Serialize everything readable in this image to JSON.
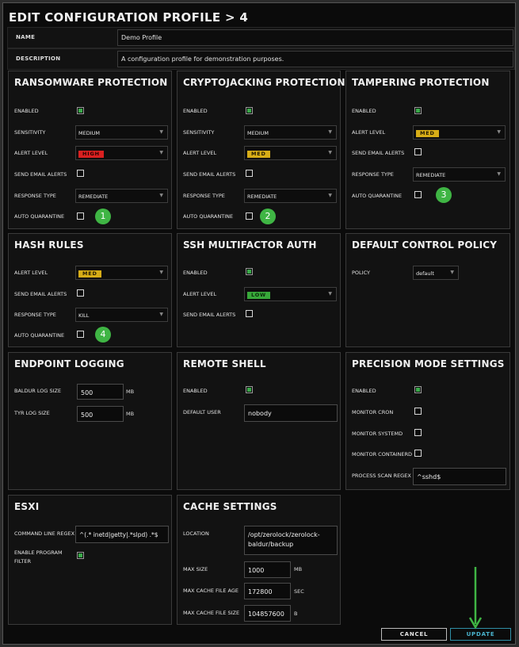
{
  "title": "EDIT CONFIGURATION PROFILE",
  "title_sep": ">",
  "title_step": "4",
  "name_label": "NAME",
  "name_value": "Demo Profile",
  "description_label": "DESCRIPTION",
  "description_value": "A configuration profile for demonstration purposes.",
  "ransomware": {
    "title": "RANSOMWARE PROTECTION",
    "enabled_label": "ENABLED",
    "enabled": true,
    "sensitivity_label": "SENSITIVITY",
    "sensitivity": "MEDIUM",
    "alert_level_label": "ALERT LEVEL",
    "alert_level": "HIGH",
    "email_label": "SEND EMAIL ALERTS",
    "email": false,
    "response_label": "RESPONSE TYPE",
    "response": "REMEDIATE",
    "quarantine_label": "AUTO QUARANTINE",
    "quarantine": false,
    "marker": "1"
  },
  "cryptojacking": {
    "title": "CRYPTOJACKING PROTECTION",
    "enabled_label": "ENABLED",
    "enabled": true,
    "sensitivity_label": "SENSITIVITY",
    "sensitivity": "MEDIUM",
    "alert_level_label": "ALERT LEVEL",
    "alert_level": "MED",
    "email_label": "SEND EMAIL ALERTS",
    "email": false,
    "response_label": "RESPONSE TYPE",
    "response": "REMEDIATE",
    "quarantine_label": "AUTO QUARANTINE",
    "quarantine": false,
    "marker": "2"
  },
  "tampering": {
    "title": "TAMPERING PROTECTION",
    "enabled_label": "ENABLED",
    "enabled": true,
    "alert_level_label": "ALERT LEVEL",
    "alert_level": "MED",
    "email_label": "SEND EMAIL ALERTS",
    "email": false,
    "response_label": "RESPONSE TYPE",
    "response": "REMEDIATE",
    "quarantine_label": "AUTO QUARANTINE",
    "quarantine": false,
    "marker": "3"
  },
  "hash_rules": {
    "title": "HASH RULES",
    "alert_level_label": "ALERT LEVEL",
    "alert_level": "MED",
    "email_label": "SEND EMAIL ALERTS",
    "email": false,
    "response_label": "RESPONSE TYPE",
    "response": "KILL",
    "quarantine_label": "AUTO QUARANTINE",
    "quarantine": false,
    "marker": "4"
  },
  "ssh": {
    "title": "SSH MULTIFACTOR AUTH",
    "enabled_label": "ENABLED",
    "enabled": true,
    "alert_level_label": "ALERT LEVEL",
    "alert_level": "LOW",
    "email_label": "SEND EMAIL ALERTS",
    "email": false
  },
  "default_policy": {
    "title": "DEFAULT CONTROL POLICY",
    "policy_label": "POLICY",
    "policy": "default"
  },
  "endpoint_logging": {
    "title": "ENDPOINT LOGGING",
    "baldur_label": "BALDUR LOG SIZE",
    "baldur_value": "500",
    "baldur_unit": "MB",
    "tyr_label": "TYR LOG SIZE",
    "tyr_value": "500",
    "tyr_unit": "MB"
  },
  "remote_shell": {
    "title": "REMOTE SHELL",
    "enabled_label": "ENABLED",
    "enabled": true,
    "user_label": "DEFAULT USER",
    "user_value": "nobody"
  },
  "precision": {
    "title": "PRECISION MODE SETTINGS",
    "enabled_label": "ENABLED",
    "enabled": true,
    "cron_label": "MONITOR CRON",
    "cron": false,
    "systemd_label": "MONITOR SYSTEMD",
    "systemd": false,
    "containerd_label": "MONITOR CONTAINERD",
    "containerd": false,
    "regex_label": "PROCESS SCAN REGEX",
    "regex_value": "^sshd$"
  },
  "esxi": {
    "title": "ESXI",
    "cmd_label": "COMMAND LINE REGEX",
    "cmd_value": "^(.* inetd|getty|.*slpd) .*$",
    "filter_label_1": "ENABLE PROGRAM",
    "filter_label_2": "FILTER",
    "filter": true
  },
  "cache": {
    "title": "CACHE SETTINGS",
    "location_label": "LOCATION",
    "location_1": "/opt/zerolock/zerolock-",
    "location_2": "baldur/backup",
    "max_size_label": "MAX SIZE",
    "max_size": "1000",
    "max_size_unit": "MB",
    "max_age_label": "MAX CACHE FILE AGE",
    "max_age": "172800",
    "max_age_unit": "SEC",
    "max_file_label": "MAX CACHE FILE SIZE",
    "max_file": "104857600",
    "max_file_unit": "B"
  },
  "buttons": {
    "cancel": "CANCEL",
    "update": "UPDATE"
  },
  "colors": {
    "accent": "#3fb544",
    "high": "#d92020",
    "med": "#d7ad17",
    "low": "#38a83a",
    "primary": "#4ab4cf"
  },
  "icons": {
    "caret": "chevron-down-icon",
    "check": "checkbox-icon"
  }
}
